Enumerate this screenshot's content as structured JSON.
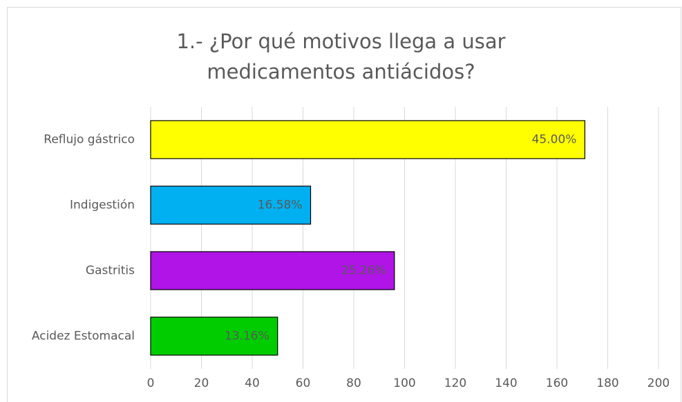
{
  "chart_data": {
    "type": "barh",
    "title": "1.- ¿Por qué motivos llega a usar medicamentos antiácidos?",
    "categories": [
      "Reflujo gástrico",
      "Indigestión",
      "Gastritis",
      "Acidez Estomacal"
    ],
    "values": [
      171,
      63,
      96,
      50
    ],
    "value_labels": [
      "45.00%",
      "16.58%",
      "25.26%",
      "13.16%"
    ],
    "colors": [
      "#ffff00",
      "#00b0f0",
      "#b014e6",
      "#00cc00"
    ],
    "xlim": [
      0,
      200
    ],
    "xticks": [
      0,
      20,
      40,
      60,
      80,
      100,
      120,
      140,
      160,
      180,
      200
    ],
    "grid": true
  }
}
